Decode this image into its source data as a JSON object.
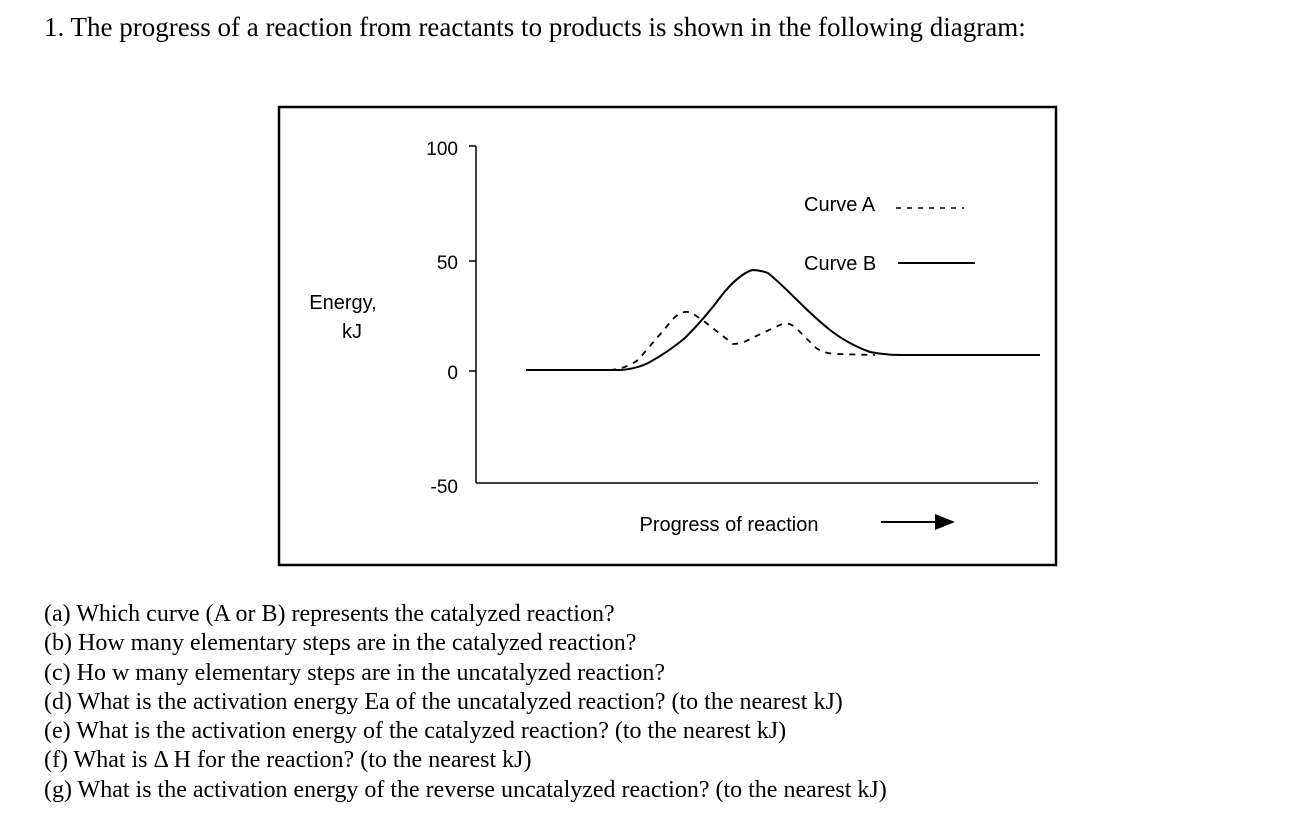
{
  "heading": "1. The progress of a reaction from reactants to products is shown in the following diagram:",
  "diagram": {
    "y_axis_label_line1": "Energy,",
    "y_axis_label_line2": "kJ",
    "y_ticks": [
      "100",
      "50",
      "0",
      "-50"
    ],
    "x_axis_label": "Progress of reaction",
    "legend": {
      "curve_a": "Curve A",
      "curve_b": "Curve B"
    },
    "curve_a_style": "dashed",
    "curve_b_style": "solid"
  },
  "questions": [
    "(a) Which curve (A or B) represents the catalyzed reaction?",
    "(b) How many elementary steps are in the catalyzed reaction?",
    "(c) Ho w many elementary steps are in the uncatalyzed reaction?",
    "(d) What is the activation energy Ea of the uncatalyzed reaction? (to the nearest kJ)",
    "(e) What is the activation energy of the catalyzed reaction? (to the nearest kJ)",
    "(f) What is Δ  H for the reaction? (to the nearest kJ)",
    "(g) What is the activation energy of the reverse uncatalyzed reaction? (to the nearest kJ)"
  ]
}
